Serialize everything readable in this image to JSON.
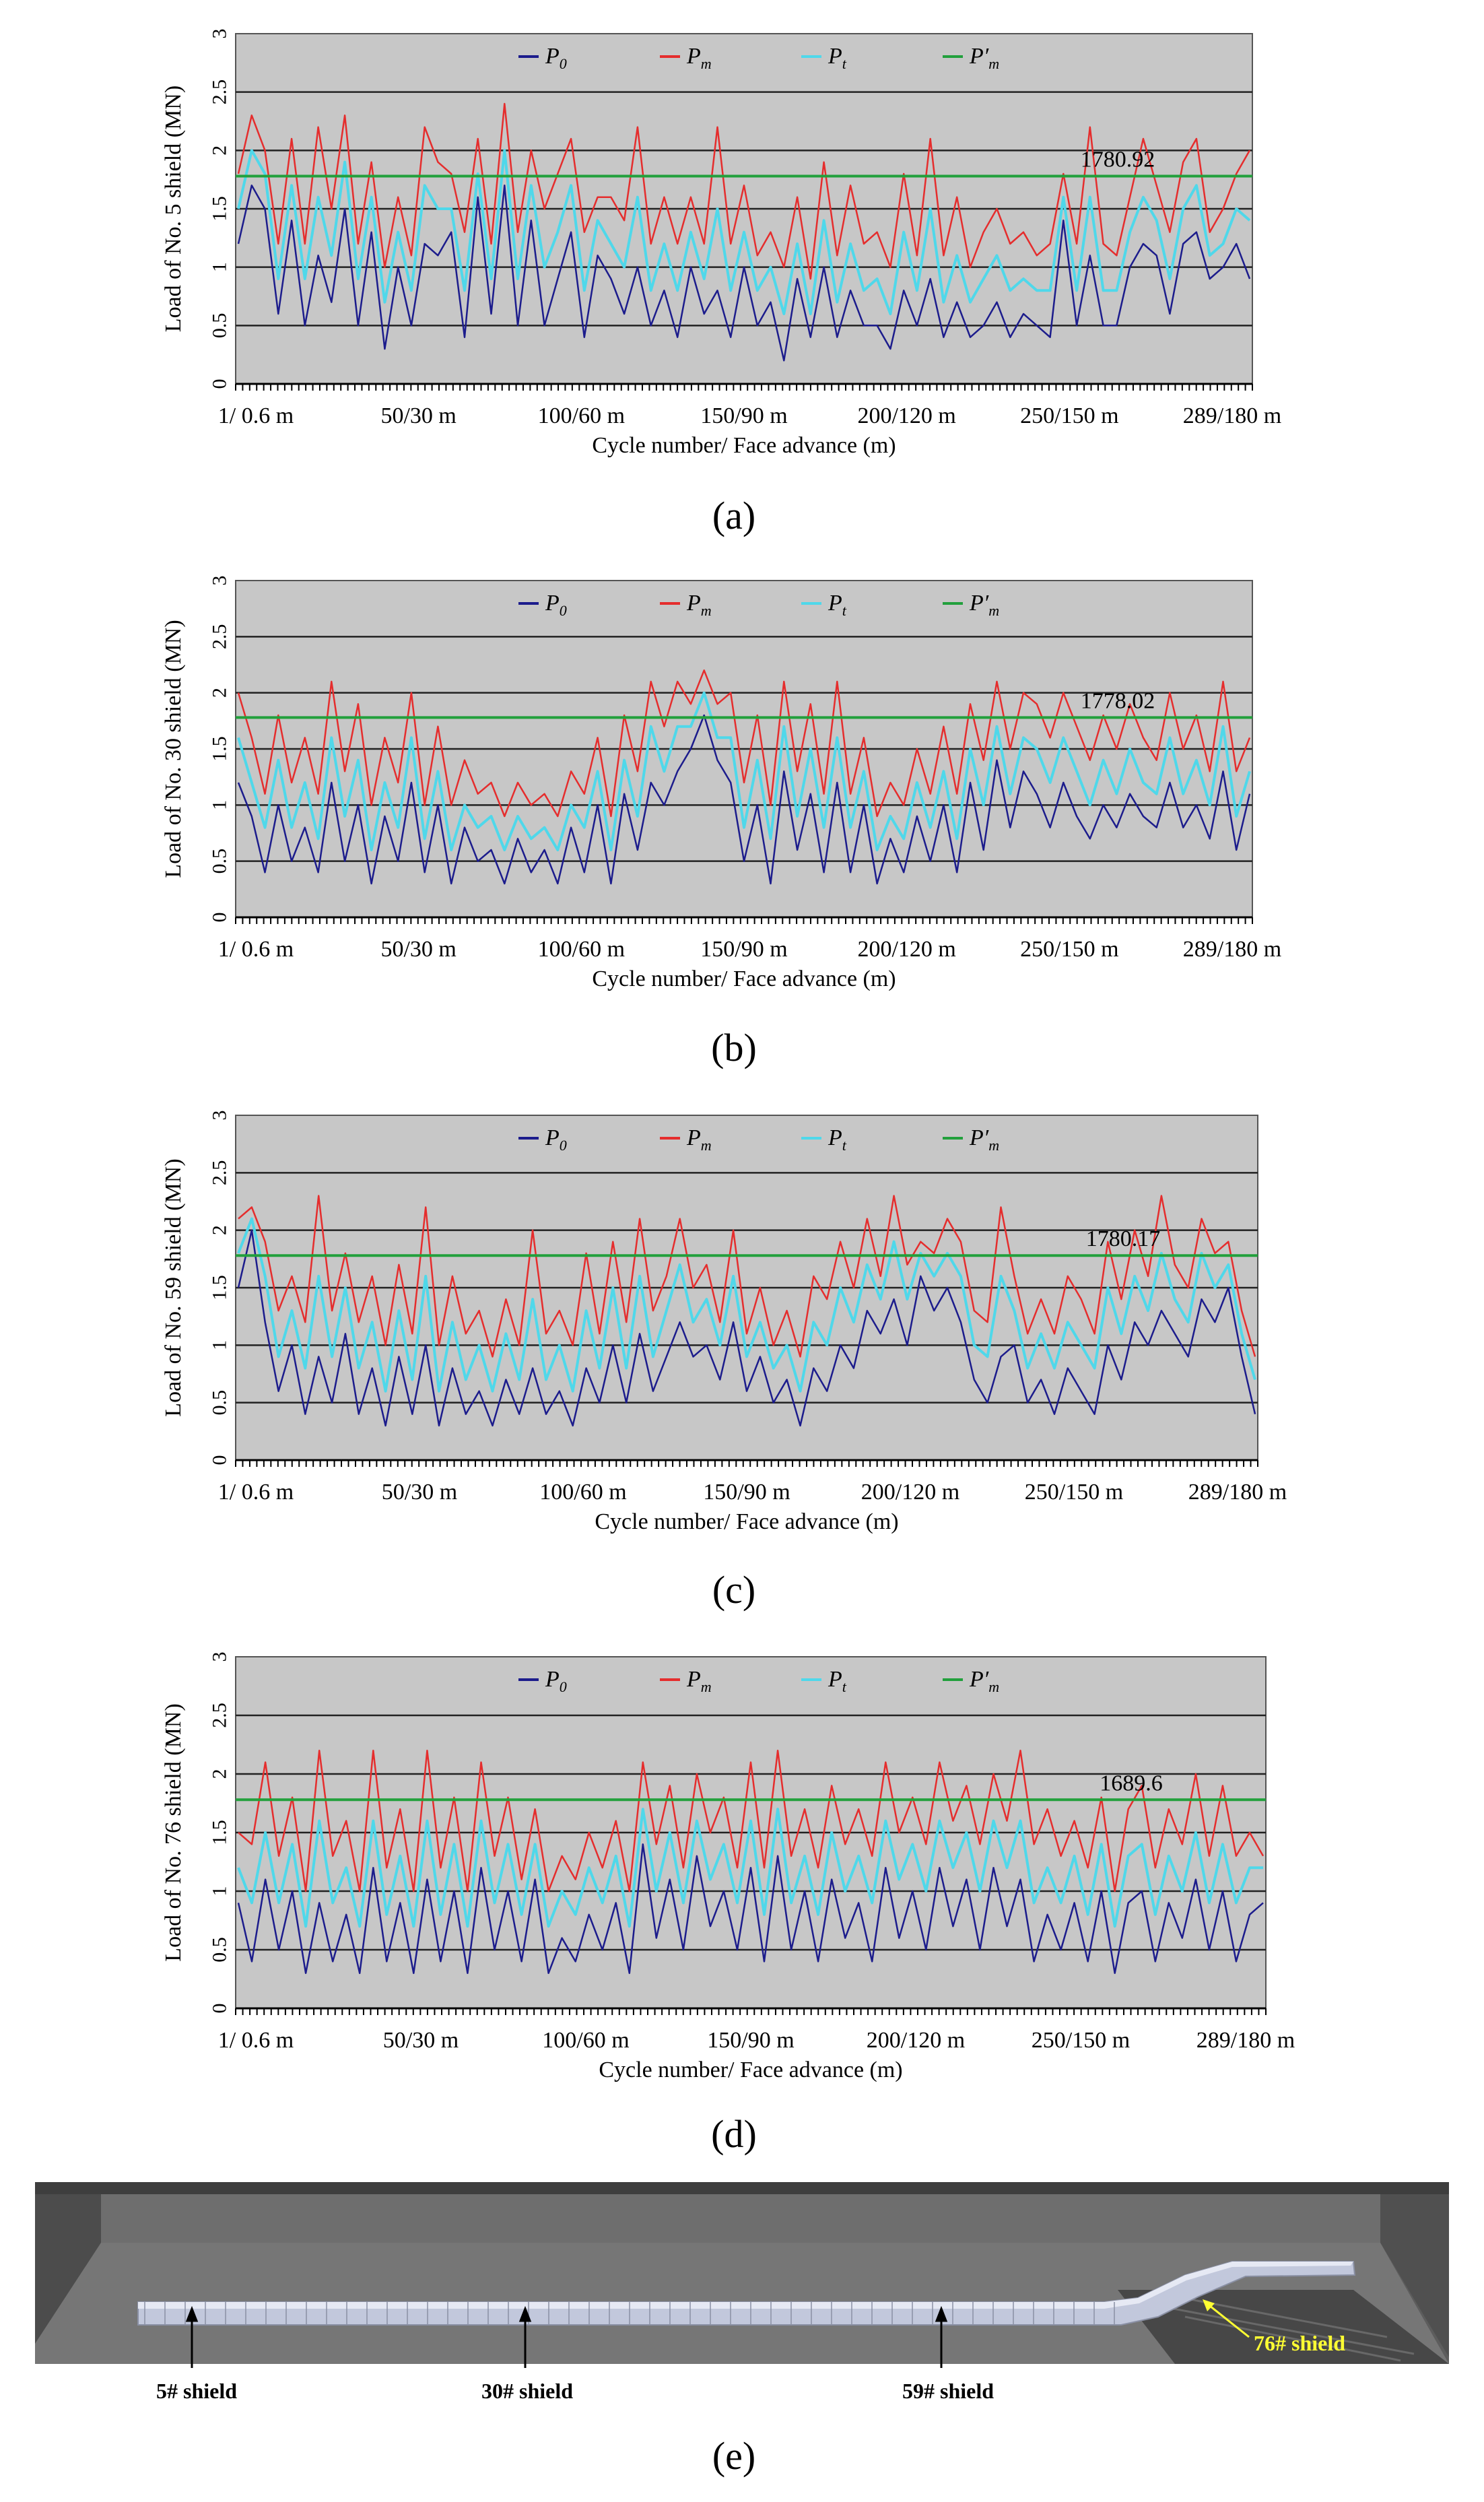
{
  "legend": {
    "p0": "P",
    "p0_sub": "0",
    "pm": "P",
    "pm_sub": "m",
    "pt": "P",
    "pt_sub": "t",
    "pmp": "P′",
    "pmp_sub": "m"
  },
  "colors": {
    "p0": "#1c1c8c",
    "pm": "#e52d2d",
    "pt": "#4fd8ea",
    "pmp": "#22a03c",
    "plot_bg": "#c7c7c7",
    "grid": "#222222",
    "callout": "#ffff33"
  },
  "common": {
    "xlabel": "Cycle number/ Face advance (m)",
    "ylim": [
      0,
      3
    ],
    "yticks": [
      "0",
      "0.5",
      "1",
      "1.5",
      "2",
      "2.5",
      "3"
    ],
    "xticks": [
      "1/ 0.6 m",
      "50/30 m",
      "100/60 m",
      "150/90 m",
      "200/120 m",
      "250/150 m",
      "289/180 m"
    ]
  },
  "chart_data": [
    {
      "type": "line",
      "panel": "(a)",
      "ylabel": "Load of No. 5 shield (MN)",
      "annotation": "1780.92",
      "xlim": [
        1,
        289
      ],
      "threshold": 1.78,
      "series": [
        {
          "name": "P0",
          "key": "p0",
          "values": [
            1.2,
            1.7,
            1.5,
            0.6,
            1.4,
            0.5,
            1.1,
            0.7,
            1.5,
            0.5,
            1.3,
            0.3,
            1.0,
            0.5,
            1.2,
            1.1,
            1.3,
            0.4,
            1.6,
            0.6,
            1.7,
            0.5,
            1.4,
            0.5,
            0.9,
            1.3,
            0.4,
            1.1,
            0.9,
            0.6,
            1.0,
            0.5,
            0.8,
            0.4,
            1.0,
            0.6,
            0.8,
            0.4,
            1.0,
            0.5,
            0.7,
            0.2,
            0.9,
            0.4,
            1.0,
            0.4,
            0.8,
            0.5,
            0.5,
            0.3,
            0.8,
            0.5,
            0.9,
            0.4,
            0.7,
            0.4,
            0.5,
            0.7,
            0.4,
            0.6,
            0.5,
            0.4,
            1.4,
            0.5,
            1.1,
            0.5,
            0.5,
            1.0,
            1.2,
            1.1,
            0.6,
            1.2,
            1.3,
            0.9,
            1.0,
            1.2,
            0.9
          ]
        },
        {
          "name": "Pm",
          "key": "pm",
          "values": [
            1.8,
            2.3,
            2.0,
            1.2,
            2.1,
            1.2,
            2.2,
            1.5,
            2.3,
            1.2,
            1.9,
            1.0,
            1.6,
            1.1,
            2.2,
            1.9,
            1.8,
            1.3,
            2.1,
            1.2,
            2.4,
            1.3,
            2.0,
            1.5,
            1.8,
            2.1,
            1.3,
            1.6,
            1.6,
            1.4,
            2.2,
            1.2,
            1.6,
            1.2,
            1.6,
            1.2,
            2.2,
            1.2,
            1.7,
            1.1,
            1.3,
            1.0,
            1.6,
            0.9,
            1.9,
            1.1,
            1.7,
            1.2,
            1.3,
            1.0,
            1.8,
            1.1,
            2.1,
            1.1,
            1.6,
            1.0,
            1.3,
            1.5,
            1.2,
            1.3,
            1.1,
            1.2,
            1.8,
            1.2,
            2.2,
            1.2,
            1.1,
            1.6,
            2.1,
            1.7,
            1.3,
            1.9,
            2.1,
            1.3,
            1.5,
            1.8,
            2.0
          ]
        },
        {
          "name": "Pt",
          "key": "pt",
          "values": [
            1.5,
            2.0,
            1.8,
            0.9,
            1.7,
            0.9,
            1.6,
            1.1,
            1.9,
            0.9,
            1.6,
            0.7,
            1.3,
            0.8,
            1.7,
            1.5,
            1.5,
            0.8,
            1.8,
            0.9,
            2.0,
            0.9,
            1.7,
            1.0,
            1.3,
            1.7,
            0.8,
            1.4,
            1.2,
            1.0,
            1.6,
            0.8,
            1.2,
            0.8,
            1.3,
            0.9,
            1.5,
            0.8,
            1.3,
            0.8,
            1.0,
            0.6,
            1.2,
            0.6,
            1.4,
            0.7,
            1.2,
            0.8,
            0.9,
            0.6,
            1.3,
            0.8,
            1.5,
            0.7,
            1.1,
            0.7,
            0.9,
            1.1,
            0.8,
            0.9,
            0.8,
            0.8,
            1.6,
            0.8,
            1.6,
            0.8,
            0.8,
            1.3,
            1.6,
            1.4,
            0.9,
            1.5,
            1.7,
            1.1,
            1.2,
            1.5,
            1.4
          ]
        }
      ]
    },
    {
      "type": "line",
      "panel": "(b)",
      "ylabel": "Load of No. 30 shield (MN)",
      "annotation": "1778.02",
      "xlim": [
        1,
        289
      ],
      "threshold": 1.78,
      "series": [
        {
          "name": "P0",
          "key": "p0",
          "values": [
            1.2,
            0.9,
            0.4,
            1.0,
            0.5,
            0.8,
            0.4,
            1.2,
            0.5,
            1.0,
            0.3,
            0.9,
            0.5,
            1.2,
            0.4,
            1.0,
            0.3,
            0.8,
            0.5,
            0.6,
            0.3,
            0.7,
            0.4,
            0.6,
            0.3,
            0.8,
            0.4,
            1.0,
            0.3,
            1.1,
            0.6,
            1.2,
            1.0,
            1.3,
            1.5,
            1.8,
            1.4,
            1.2,
            0.5,
            1.0,
            0.3,
            1.3,
            0.6,
            1.1,
            0.4,
            1.2,
            0.4,
            1.0,
            0.3,
            0.7,
            0.4,
            0.9,
            0.5,
            1.0,
            0.4,
            1.2,
            0.6,
            1.4,
            0.8,
            1.3,
            1.1,
            0.8,
            1.2,
            0.9,
            0.7,
            1.0,
            0.8,
            1.1,
            0.9,
            0.8,
            1.2,
            0.8,
            1.0,
            0.7,
            1.3,
            0.6,
            1.1
          ]
        },
        {
          "name": "Pm",
          "key": "pm",
          "values": [
            2.0,
            1.6,
            1.1,
            1.8,
            1.2,
            1.6,
            1.1,
            2.1,
            1.3,
            1.9,
            1.0,
            1.6,
            1.2,
            2.0,
            1.0,
            1.7,
            1.0,
            1.4,
            1.1,
            1.2,
            0.9,
            1.2,
            1.0,
            1.1,
            0.9,
            1.3,
            1.1,
            1.6,
            0.9,
            1.8,
            1.3,
            2.1,
            1.7,
            2.1,
            1.9,
            2.2,
            1.9,
            2.0,
            1.2,
            1.8,
            1.0,
            2.1,
            1.3,
            1.9,
            1.1,
            2.1,
            1.1,
            1.6,
            0.9,
            1.2,
            1.0,
            1.5,
            1.1,
            1.7,
            1.1,
            1.9,
            1.4,
            2.1,
            1.5,
            2.0,
            1.9,
            1.6,
            2.0,
            1.7,
            1.4,
            1.8,
            1.5,
            1.9,
            1.6,
            1.4,
            2.0,
            1.5,
            1.8,
            1.3,
            2.1,
            1.3,
            1.6
          ]
        },
        {
          "name": "Pt",
          "key": "pt",
          "values": [
            1.6,
            1.2,
            0.8,
            1.4,
            0.8,
            1.2,
            0.7,
            1.6,
            0.9,
            1.4,
            0.6,
            1.2,
            0.8,
            1.6,
            0.7,
            1.3,
            0.6,
            1.0,
            0.8,
            0.9,
            0.6,
            0.9,
            0.7,
            0.8,
            0.6,
            1.0,
            0.8,
            1.3,
            0.6,
            1.4,
            0.9,
            1.7,
            1.3,
            1.7,
            1.7,
            2.0,
            1.6,
            1.6,
            0.8,
            1.4,
            0.7,
            1.7,
            0.9,
            1.5,
            0.8,
            1.6,
            0.8,
            1.3,
            0.6,
            0.9,
            0.7,
            1.2,
            0.8,
            1.3,
            0.7,
            1.5,
            1.0,
            1.7,
            1.1,
            1.6,
            1.5,
            1.2,
            1.6,
            1.3,
            1.0,
            1.4,
            1.1,
            1.5,
            1.2,
            1.1,
            1.6,
            1.1,
            1.4,
            1.0,
            1.7,
            0.9,
            1.3
          ]
        }
      ]
    },
    {
      "type": "line",
      "panel": "(c)",
      "ylabel": "Load of No. 59 shield (MN)",
      "annotation": "1780.17",
      "xlim": [
        1,
        289
      ],
      "threshold": 1.78,
      "series": [
        {
          "name": "P0",
          "key": "p0",
          "values": [
            1.5,
            2.0,
            1.2,
            0.6,
            1.0,
            0.4,
            0.9,
            0.5,
            1.1,
            0.4,
            0.8,
            0.3,
            0.9,
            0.4,
            1.0,
            0.3,
            0.8,
            0.4,
            0.6,
            0.3,
            0.7,
            0.4,
            0.8,
            0.4,
            0.6,
            0.3,
            0.8,
            0.5,
            1.0,
            0.5,
            1.1,
            0.6,
            0.9,
            1.2,
            0.9,
            1.0,
            0.7,
            1.2,
            0.6,
            0.9,
            0.5,
            0.7,
            0.3,
            0.8,
            0.6,
            1.0,
            0.8,
            1.3,
            1.1,
            1.4,
            1.0,
            1.6,
            1.3,
            1.5,
            1.2,
            0.7,
            0.5,
            0.9,
            1.0,
            0.5,
            0.7,
            0.4,
            0.8,
            0.6,
            0.4,
            1.0,
            0.7,
            1.2,
            1.0,
            1.3,
            1.1,
            0.9,
            1.4,
            1.2,
            1.5,
            0.9,
            0.4
          ]
        },
        {
          "name": "Pm",
          "key": "pm",
          "values": [
            2.1,
            2.2,
            1.9,
            1.3,
            1.6,
            1.2,
            2.3,
            1.3,
            1.8,
            1.2,
            1.6,
            1.0,
            1.7,
            1.1,
            2.2,
            1.0,
            1.6,
            1.1,
            1.3,
            0.9,
            1.4,
            1.0,
            2.0,
            1.1,
            1.3,
            1.0,
            1.8,
            1.1,
            1.9,
            1.2,
            2.1,
            1.3,
            1.6,
            2.1,
            1.5,
            1.7,
            1.2,
            2.0,
            1.1,
            1.5,
            1.0,
            1.3,
            0.9,
            1.6,
            1.4,
            1.9,
            1.5,
            2.1,
            1.6,
            2.3,
            1.7,
            1.9,
            1.8,
            2.1,
            1.9,
            1.3,
            1.2,
            2.2,
            1.6,
            1.1,
            1.4,
            1.1,
            1.6,
            1.4,
            1.1,
            1.9,
            1.4,
            2.0,
            1.6,
            2.3,
            1.7,
            1.5,
            2.1,
            1.8,
            1.9,
            1.3,
            0.9
          ]
        },
        {
          "name": "Pt",
          "key": "pt",
          "values": [
            1.8,
            2.1,
            1.6,
            0.9,
            1.3,
            0.8,
            1.6,
            0.9,
            1.5,
            0.8,
            1.2,
            0.6,
            1.3,
            0.7,
            1.6,
            0.6,
            1.2,
            0.7,
            1.0,
            0.6,
            1.1,
            0.7,
            1.4,
            0.7,
            1.0,
            0.6,
            1.3,
            0.8,
            1.5,
            0.8,
            1.6,
            0.9,
            1.3,
            1.7,
            1.2,
            1.4,
            1.0,
            1.6,
            0.9,
            1.2,
            0.8,
            1.0,
            0.6,
            1.2,
            1.0,
            1.5,
            1.2,
            1.7,
            1.4,
            1.9,
            1.4,
            1.8,
            1.6,
            1.8,
            1.6,
            1.0,
            0.9,
            1.6,
            1.3,
            0.8,
            1.1,
            0.8,
            1.2,
            1.0,
            0.8,
            1.5,
            1.1,
            1.6,
            1.3,
            1.8,
            1.4,
            1.2,
            1.8,
            1.5,
            1.7,
            1.1,
            0.7
          ]
        }
      ]
    },
    {
      "type": "line",
      "panel": "(d)",
      "ylabel": "Load of No. 76 shield (MN)",
      "annotation": "1689.6",
      "xlim": [
        1,
        289
      ],
      "threshold": 1.78,
      "series": [
        {
          "name": "P0",
          "key": "p0",
          "values": [
            0.9,
            0.4,
            1.1,
            0.5,
            1.0,
            0.3,
            0.9,
            0.4,
            0.8,
            0.3,
            1.2,
            0.4,
            0.9,
            0.3,
            1.1,
            0.4,
            1.0,
            0.3,
            1.2,
            0.5,
            1.0,
            0.4,
            1.1,
            0.3,
            0.6,
            0.4,
            0.8,
            0.5,
            0.9,
            0.3,
            1.4,
            0.6,
            1.1,
            0.5,
            1.3,
            0.7,
            1.0,
            0.5,
            1.2,
            0.4,
            1.3,
            0.5,
            1.0,
            0.4,
            1.1,
            0.6,
            0.9,
            0.4,
            1.2,
            0.6,
            1.0,
            0.5,
            1.2,
            0.7,
            1.1,
            0.5,
            1.2,
            0.7,
            1.1,
            0.4,
            0.8,
            0.5,
            0.9,
            0.4,
            1.0,
            0.3,
            0.9,
            1.0,
            0.4,
            0.9,
            0.6,
            1.1,
            0.5,
            1.0,
            0.4,
            0.8,
            0.9
          ]
        },
        {
          "name": "Pm",
          "key": "pm",
          "values": [
            1.5,
            1.4,
            2.1,
            1.3,
            1.8,
            1.0,
            2.2,
            1.3,
            1.6,
            1.0,
            2.2,
            1.2,
            1.7,
            1.0,
            2.2,
            1.2,
            1.8,
            1.0,
            2.1,
            1.3,
            1.8,
            1.1,
            1.7,
            1.0,
            1.3,
            1.1,
            1.5,
            1.2,
            1.6,
            1.0,
            2.1,
            1.4,
            1.9,
            1.2,
            2.0,
            1.5,
            1.8,
            1.2,
            2.1,
            1.2,
            2.2,
            1.3,
            1.7,
            1.2,
            1.9,
            1.4,
            1.7,
            1.3,
            2.1,
            1.5,
            1.8,
            1.4,
            2.1,
            1.6,
            1.9,
            1.4,
            2.0,
            1.6,
            2.2,
            1.4,
            1.7,
            1.3,
            1.6,
            1.2,
            1.8,
            1.0,
            1.7,
            1.9,
            1.2,
            1.7,
            1.4,
            2.0,
            1.3,
            1.9,
            1.3,
            1.5,
            1.3
          ]
        },
        {
          "name": "Pt",
          "key": "pt",
          "values": [
            1.2,
            0.9,
            1.5,
            0.9,
            1.4,
            0.7,
            1.6,
            0.9,
            1.2,
            0.7,
            1.6,
            0.8,
            1.3,
            0.7,
            1.6,
            0.8,
            1.4,
            0.7,
            1.6,
            0.9,
            1.4,
            0.8,
            1.4,
            0.7,
            1.0,
            0.8,
            1.2,
            0.9,
            1.3,
            0.7,
            1.7,
            1.0,
            1.5,
            0.9,
            1.6,
            1.1,
            1.4,
            0.9,
            1.6,
            0.8,
            1.7,
            0.9,
            1.3,
            0.8,
            1.5,
            1.0,
            1.3,
            0.9,
            1.6,
            1.1,
            1.4,
            1.0,
            1.6,
            1.2,
            1.5,
            1.0,
            1.6,
            1.2,
            1.6,
            0.9,
            1.2,
            0.9,
            1.3,
            0.8,
            1.4,
            0.7,
            1.3,
            1.4,
            0.8,
            1.3,
            1.0,
            1.5,
            0.9,
            1.4,
            0.9,
            1.2,
            1.2
          ]
        }
      ]
    }
  ],
  "panel_e": {
    "label": "(e)",
    "shield_5": "5# shield",
    "shield_30": "30# shield",
    "shield_59": "59# shield",
    "shield_76": "76# shield"
  }
}
